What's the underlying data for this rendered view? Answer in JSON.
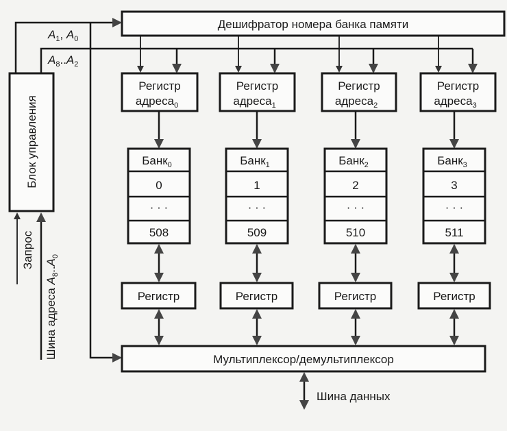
{
  "decoder": {
    "label": "Дешифратор номера банка памяти"
  },
  "control_block": {
    "label": "Блок управления"
  },
  "signals": {
    "low_bits": {
      "a": "A",
      "a_sub": "1",
      "sep": ", ",
      "b": "A",
      "b_sub": "0"
    },
    "high_bits": {
      "a": "A",
      "a_sub": "8",
      "sep": "..",
      "b": "A",
      "b_sub": "2"
    },
    "request": "Запрос",
    "address_bus": {
      "prefix": "Шина адреса ",
      "a": "A",
      "a_sub": "8",
      "sep": "..",
      "b": "A",
      "b_sub": "0"
    },
    "data_bus": "Шина данных"
  },
  "banks": [
    {
      "reg_line1": "Регистр",
      "reg_line2": "адреса",
      "reg_sub": "0",
      "bank": "Банк",
      "bank_sub": "0",
      "first": "0",
      "dots": "· · ·",
      "last": "508",
      "data_reg": "Регистр"
    },
    {
      "reg_line1": "Регистр",
      "reg_line2": "адреса",
      "reg_sub": "1",
      "bank": "Банк",
      "bank_sub": "1",
      "first": "1",
      "dots": "· · ·",
      "last": "509",
      "data_reg": "Регистр"
    },
    {
      "reg_line1": "Регистр",
      "reg_line2": "адреса",
      "reg_sub": "2",
      "bank": "Банк",
      "bank_sub": "2",
      "first": "2",
      "dots": "· · ·",
      "last": "510",
      "data_reg": "Регистр"
    },
    {
      "reg_line1": "Регистр",
      "reg_line2": "адреса",
      "reg_sub": "3",
      "bank": "Банк",
      "bank_sub": "3",
      "first": "3",
      "dots": "· · ·",
      "last": "511",
      "data_reg": "Регистр"
    }
  ],
  "mux": {
    "label": "Мультиплексор/демультиплексор"
  }
}
